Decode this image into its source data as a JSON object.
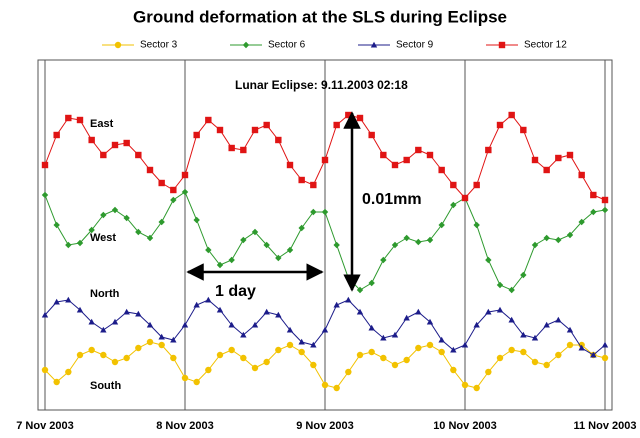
{
  "chart_data": {
    "type": "line",
    "title": "Ground deformation at the SLS during Eclipse",
    "x": [
      0,
      2,
      4,
      6,
      8,
      10,
      12,
      14,
      16,
      18,
      20,
      22,
      24,
      26,
      28,
      30,
      32,
      34,
      36,
      38,
      40,
      42,
      44,
      46,
      48,
      50,
      52,
      54,
      56,
      58,
      60,
      62,
      64,
      66,
      68,
      70,
      72,
      74,
      76,
      78,
      80,
      82,
      84,
      86,
      88,
      90,
      92,
      94,
      96
    ],
    "xlim": [
      0,
      96
    ],
    "xticks": [
      {
        "value": 0,
        "label": "7 Nov 2003"
      },
      {
        "value": 24,
        "label": "8 Nov 2003"
      },
      {
        "value": 48,
        "label": "9 Nov 2003"
      },
      {
        "value": 72,
        "label": "10 Nov 2003"
      },
      {
        "value": 96,
        "label": "11 Nov 2003"
      }
    ],
    "ylim": [
      0,
      350
    ],
    "grid": true,
    "series": [
      {
        "name": "Sector 3",
        "color": "#f2c200",
        "marker": "circle",
        "values": [
          40,
          28,
          38,
          55,
          60,
          55,
          48,
          52,
          62,
          68,
          65,
          52,
          32,
          28,
          40,
          55,
          60,
          52,
          42,
          48,
          60,
          65,
          58,
          45,
          25,
          22,
          38,
          55,
          58,
          52,
          45,
          50,
          62,
          65,
          58,
          40,
          25,
          22,
          38,
          52,
          60,
          58,
          48,
          45,
          55,
          65,
          65,
          55,
          52
        ]
      },
      {
        "name": "Sector 6",
        "color": "#2e9a2e",
        "marker": "diamond",
        "values": [
          215,
          185,
          165,
          167,
          180,
          195,
          200,
          192,
          178,
          172,
          188,
          210,
          218,
          190,
          160,
          145,
          150,
          170,
          178,
          165,
          152,
          160,
          182,
          198,
          198,
          165,
          132,
          120,
          127,
          150,
          165,
          172,
          168,
          170,
          185,
          205,
          212,
          185,
          150,
          125,
          120,
          135,
          165,
          172,
          170,
          175,
          188,
          198,
          200
        ]
      },
      {
        "name": "Sector 9",
        "color": "#1c1c8a",
        "marker": "triangle",
        "values": [
          95,
          108,
          110,
          100,
          88,
          80,
          88,
          98,
          96,
          85,
          73,
          70,
          85,
          105,
          110,
          100,
          85,
          75,
          85,
          98,
          95,
          80,
          68,
          65,
          80,
          105,
          110,
          98,
          82,
          72,
          75,
          92,
          98,
          88,
          70,
          60,
          65,
          85,
          98,
          100,
          90,
          75,
          72,
          85,
          90,
          80,
          62,
          55,
          65
        ]
      },
      {
        "name": "Sector 12",
        "color": "#e01414",
        "marker": "square",
        "values": [
          245,
          275,
          292,
          290,
          270,
          255,
          265,
          267,
          255,
          240,
          227,
          220,
          235,
          275,
          290,
          280,
          262,
          260,
          280,
          285,
          270,
          245,
          230,
          225,
          250,
          285,
          295,
          292,
          275,
          255,
          245,
          250,
          260,
          255,
          240,
          225,
          212,
          225,
          260,
          285,
          295,
          280,
          250,
          240,
          252,
          255,
          235,
          215,
          210
        ]
      }
    ],
    "annotations": [
      "Lunar  Eclipse: 9.11.2003 02:18",
      "East",
      "West",
      "North",
      "South",
      "0.01mm",
      "1 day"
    ]
  }
}
